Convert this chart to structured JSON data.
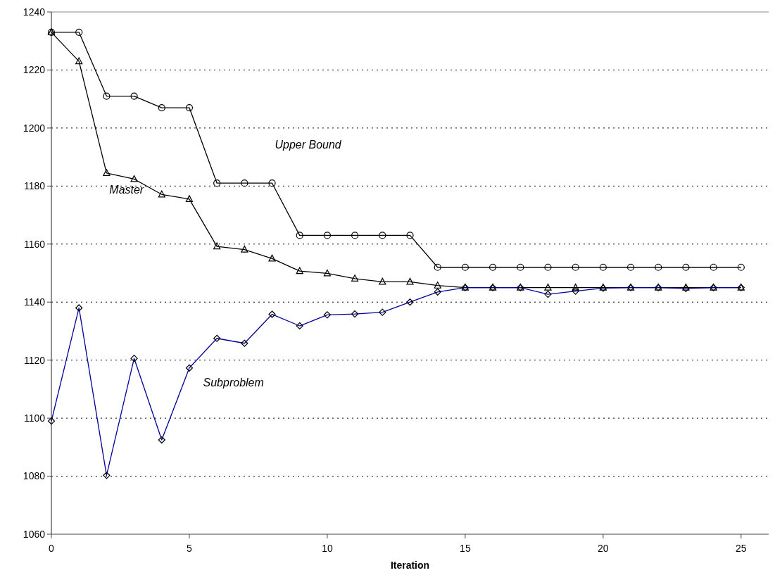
{
  "chart_data": {
    "type": "line",
    "xlabel": "Iteration",
    "x": [
      0,
      1,
      2,
      3,
      4,
      5,
      6,
      7,
      8,
      9,
      10,
      11,
      12,
      13,
      14,
      15,
      16,
      17,
      18,
      19,
      20,
      21,
      22,
      23,
      24,
      25
    ],
    "series": [
      {
        "name": "Upper Bound",
        "color": "#000000",
        "marker": "circle",
        "values": [
          1233,
          1233,
          1211,
          1211,
          1207,
          1207,
          1181,
          1181,
          1181,
          1163,
          1163,
          1163,
          1163,
          1163,
          1152,
          1152,
          1152,
          1152,
          1152,
          1152,
          1152,
          1152,
          1152,
          1152,
          1152,
          1152
        ]
      },
      {
        "name": "Master",
        "color": "#000000",
        "marker": "triangle",
        "values": [
          1233,
          1223,
          1184.5,
          1182.4,
          1177.1,
          1175.5,
          1159.2,
          1158.1,
          1155,
          1150.7,
          1149.9,
          1148.1,
          1147,
          1147,
          1145.7,
          1145,
          1145,
          1145,
          1145,
          1145,
          1145,
          1145,
          1145,
          1145,
          1145,
          1145
        ]
      },
      {
        "name": "Subproblem",
        "color": "#000099",
        "marker": "diamond",
        "values": [
          1099,
          1138,
          1080.3,
          1120.6,
          1092.5,
          1117.3,
          1127.5,
          1125.8,
          1135.8,
          1131.8,
          1135.6,
          1135.9,
          1136.5,
          1140,
          1143.5,
          1145,
          1145,
          1145,
          1142.7,
          1143.8,
          1144.8,
          1145,
          1145,
          1144.7,
          1145,
          1145
        ]
      }
    ],
    "xlim": [
      0,
      26
    ],
    "xticks": [
      0,
      5,
      10,
      15,
      20,
      25
    ],
    "ylim": [
      1060,
      1240
    ],
    "yticks": [
      1060,
      1080,
      1100,
      1120,
      1140,
      1160,
      1180,
      1200,
      1220,
      1240
    ],
    "grid": "y"
  }
}
